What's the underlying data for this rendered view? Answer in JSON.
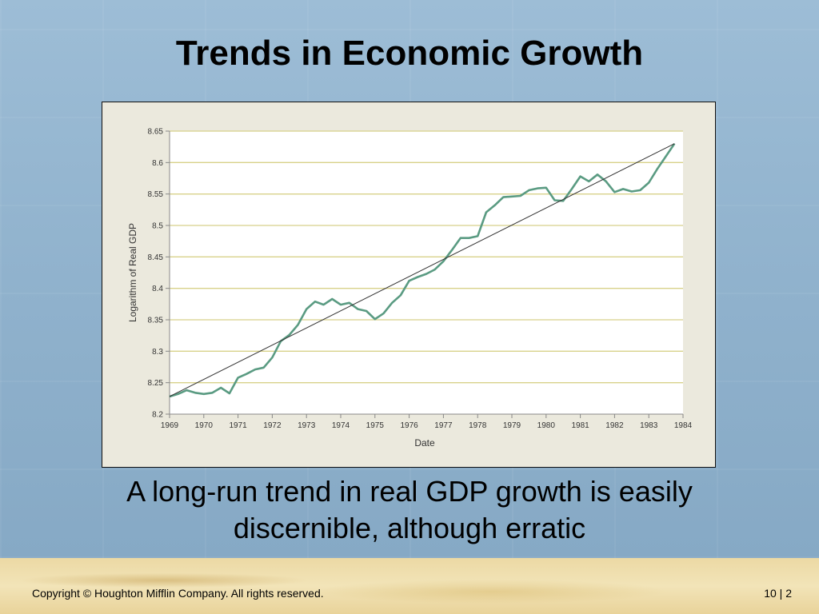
{
  "slide": {
    "title": "Trends in Economic Growth",
    "caption_line1": "A long-run trend in real GDP growth is easily",
    "caption_line2": "discernible, although erratic",
    "copyright": "Copyright © Houghton Mifflin Company.  All rights reserved.",
    "page_number": "10 | 2"
  },
  "colors": {
    "series": "#5a9b82",
    "trend": "#333333",
    "grid": "#d8d18a",
    "plot_bg": "#ffffff",
    "frame_bg": "#ebe9dd"
  },
  "chart_data": {
    "type": "line",
    "title": "",
    "xlabel": "Date",
    "ylabel": "Logarithm of Real GDP",
    "xlim": [
      1969,
      1984
    ],
    "ylim": [
      8.2,
      8.65
    ],
    "x_ticks": [
      "1969",
      "1970",
      "1971",
      "1972",
      "1973",
      "1974",
      "1975",
      "1976",
      "1977",
      "1978",
      "1979",
      "1980",
      "1981",
      "1982",
      "1983",
      "1984"
    ],
    "y_ticks": [
      "8.2",
      "8.25",
      "8.3",
      "8.35",
      "8.4",
      "8.45",
      "8.5",
      "8.55",
      "8.6",
      "8.65"
    ],
    "grid": "horizontal",
    "legend": "none",
    "series": [
      {
        "x": [
          1969.0,
          1969.25,
          1969.5,
          1969.75,
          1970.0,
          1970.25,
          1970.5,
          1970.75,
          1971.0,
          1971.25,
          1971.5,
          1971.75,
          1972.0,
          1972.25,
          1972.5,
          1972.75,
          1973.0,
          1973.25,
          1973.5,
          1973.75,
          1974.0,
          1974.25,
          1974.5,
          1974.75,
          1975.0,
          1975.25,
          1975.5,
          1975.75,
          1976.0,
          1976.25,
          1976.5,
          1976.75,
          1977.0,
          1977.25,
          1977.5,
          1977.75,
          1978.0,
          1978.25,
          1978.5,
          1978.75,
          1979.0,
          1979.25,
          1979.5,
          1979.75,
          1980.0,
          1980.25,
          1980.5,
          1980.75,
          1981.0,
          1981.25,
          1981.5,
          1981.75,
          1982.0,
          1982.25,
          1982.5,
          1982.75,
          1983.0,
          1983.25,
          1983.5,
          1983.75
        ],
        "values": [
          8.228,
          8.232,
          8.238,
          8.234,
          8.232,
          8.234,
          8.242,
          8.233,
          8.258,
          8.264,
          8.271,
          8.274,
          8.29,
          8.316,
          8.326,
          8.342,
          8.367,
          8.379,
          8.374,
          8.383,
          8.374,
          8.377,
          8.367,
          8.364,
          8.351,
          8.36,
          8.377,
          8.389,
          8.412,
          8.418,
          8.423,
          8.43,
          8.443,
          8.461,
          8.48,
          8.48,
          8.483,
          8.521,
          8.532,
          8.545,
          8.546,
          8.547,
          8.556,
          8.559,
          8.56,
          8.54,
          8.539,
          8.558,
          8.578,
          8.57,
          8.581,
          8.57,
          8.553,
          8.558,
          8.554,
          8.556,
          8.568,
          8.59,
          8.61,
          8.63
        ]
      },
      {
        "x": [
          1969.0,
          1983.75
        ],
        "values": [
          8.228,
          8.63
        ]
      }
    ]
  }
}
